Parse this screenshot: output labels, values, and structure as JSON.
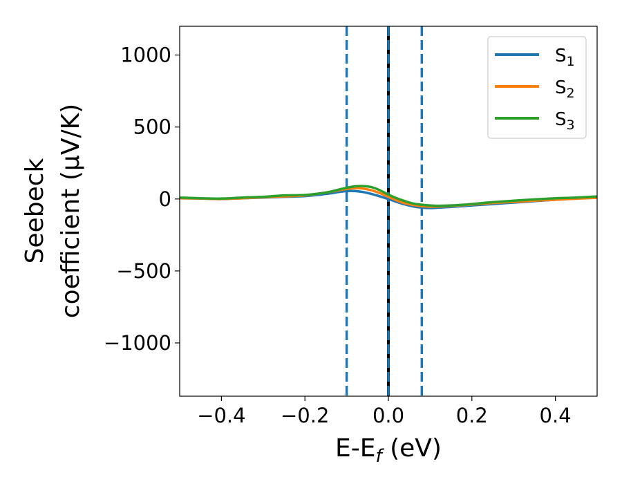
{
  "chart_data": {
    "type": "line",
    "xlabel": "E-E_f (eV)",
    "ylabel_line1": "Seebeck",
    "ylabel_line2": "coefficient  (μV/K)",
    "xlim": [
      -0.5,
      0.5
    ],
    "ylim": [
      -1370,
      1200
    ],
    "xticks": [
      -0.4,
      -0.2,
      0.0,
      0.2,
      0.4
    ],
    "xtick_labels": [
      "−0.4",
      "−0.2",
      "0.0",
      "0.2",
      "0.4"
    ],
    "yticks": [
      -1000,
      -500,
      0,
      500,
      1000
    ],
    "ytick_labels": [
      "−1000",
      "−500",
      "0",
      "500",
      "1000"
    ],
    "grid": false,
    "legend_placement": "top-right",
    "vlines": [
      {
        "x": -0.1,
        "style": "dashed",
        "color": "#1f77b4"
      },
      {
        "x": 0.0,
        "style": "solid",
        "color": "#000000"
      },
      {
        "x": 0.0,
        "style": "dashed",
        "color": "#1f77b4"
      },
      {
        "x": 0.08,
        "style": "dashed",
        "color": "#1f77b4"
      }
    ],
    "series": [
      {
        "name": "S",
        "sub": "1",
        "color": "#1f77b4",
        "x": [
          -0.5,
          -0.45,
          -0.4,
          -0.35,
          -0.3,
          -0.25,
          -0.2,
          -0.15,
          -0.12,
          -0.1,
          -0.08,
          -0.06,
          -0.04,
          -0.02,
          0.0,
          0.02,
          0.04,
          0.06,
          0.08,
          0.1,
          0.12,
          0.15,
          0.2,
          0.25,
          0.3,
          0.35,
          0.4,
          0.45,
          0.5
        ],
        "y": [
          5,
          3,
          0,
          5,
          10,
          15,
          20,
          35,
          48,
          55,
          55,
          48,
          35,
          18,
          0,
          -20,
          -38,
          -52,
          -60,
          -63,
          -60,
          -55,
          -45,
          -35,
          -25,
          -15,
          -5,
          3,
          10
        ]
      },
      {
        "name": "S",
        "sub": "2",
        "color": "#ff7f0e",
        "x": [
          -0.5,
          -0.45,
          -0.4,
          -0.35,
          -0.3,
          -0.25,
          -0.2,
          -0.15,
          -0.12,
          -0.1,
          -0.08,
          -0.06,
          -0.04,
          -0.02,
          0.0,
          0.02,
          0.04,
          0.06,
          0.08,
          0.1,
          0.12,
          0.15,
          0.2,
          0.25,
          0.3,
          0.35,
          0.4,
          0.45,
          0.5
        ],
        "y": [
          5,
          3,
          0,
          5,
          12,
          18,
          25,
          45,
          60,
          70,
          75,
          72,
          60,
          40,
          15,
          -10,
          -30,
          -42,
          -50,
          -53,
          -52,
          -48,
          -38,
          -28,
          -20,
          -12,
          -5,
          2,
          8
        ]
      },
      {
        "name": "S",
        "sub": "3",
        "color": "#2ca02c",
        "x": [
          -0.5,
          -0.45,
          -0.4,
          -0.35,
          -0.3,
          -0.25,
          -0.2,
          -0.15,
          -0.12,
          -0.1,
          -0.08,
          -0.06,
          -0.04,
          -0.02,
          0.0,
          0.02,
          0.04,
          0.06,
          0.08,
          0.1,
          0.12,
          0.15,
          0.2,
          0.25,
          0.3,
          0.35,
          0.4,
          0.45,
          0.5
        ],
        "y": [
          10,
          5,
          3,
          10,
          15,
          25,
          28,
          45,
          65,
          78,
          88,
          90,
          82,
          60,
          30,
          5,
          -15,
          -32,
          -40,
          -45,
          -47,
          -45,
          -35,
          -22,
          -12,
          -3,
          5,
          10,
          18
        ]
      }
    ]
  }
}
